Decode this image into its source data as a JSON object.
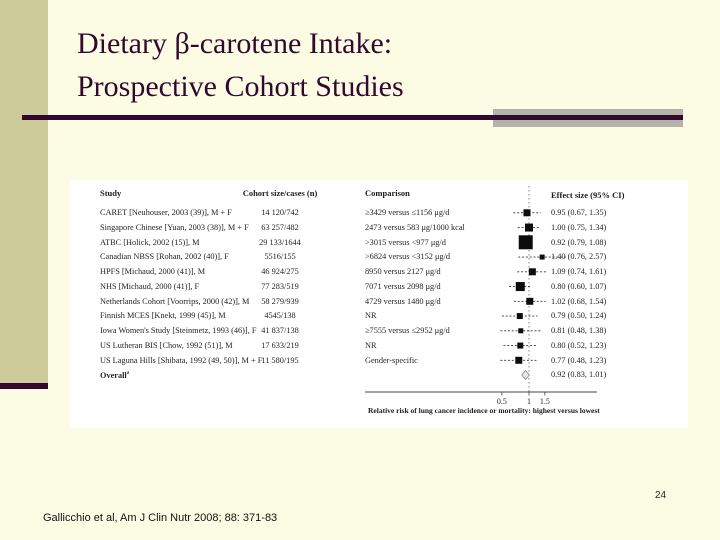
{
  "slide": {
    "title_lines": [
      "Dietary β-carotene Intake:",
      "Prospective Cohort Studies"
    ],
    "page_number": "24",
    "citation": "Gallicchio et al, Am J Clin Nutr 2008; 88: 371-83"
  },
  "colors": {
    "background": "#FCFCE4",
    "sidebar_olive": "#CBCC99",
    "accent_maroon": "#33082E",
    "accent_gray": "#B3B3AA",
    "panel_white": "#FFFFFF",
    "marker_black": "#0D0D0D"
  },
  "chart_data": {
    "type": "forest",
    "title": "",
    "columns": {
      "study": "Study",
      "cohort": "Cohort size/cases (n)",
      "comparison": "Comparison",
      "effect": "Effect size (95% CI)"
    },
    "xlabel": "Relative risk of lung cancer incidence or mortality: highest versus lowest",
    "x_ticks": [
      "0.5",
      "1",
      "1.5"
    ],
    "x_scale": "log",
    "ref_line": 1,
    "rows": [
      {
        "study": "CARET [Neuhouser, 2003 (39)], M + F",
        "cohort": "14 120/742",
        "comparison": "≥3429 versus ≤1156 μg/d",
        "effect": "0.95 (0.67, 1.35)",
        "rr": 0.95,
        "ci": [
          0.67,
          1.35
        ],
        "weight": 7
      },
      {
        "study": "Singapore Chinese [Yuan, 2003 (38)], M + F",
        "cohort": "63 257/482",
        "comparison": "2473 versus 583 μg/1000 kcal",
        "effect": "1.00 (0.75, 1.34)",
        "rr": 1.0,
        "ci": [
          0.75,
          1.34
        ],
        "weight": 8
      },
      {
        "study": "ATBC [Holick, 2002 (15)], M",
        "cohort": "29 133/1644",
        "comparison": ">3015 versus <977 μg/d",
        "effect": "0.92 (0.79, 1.08)",
        "rr": 0.92,
        "ci": [
          0.79,
          1.08
        ],
        "weight": 14
      },
      {
        "study": "Canadian NBSS [Rohan, 2002 (40)], F",
        "cohort": "5516/155",
        "comparison": ">6824 versus <3152 μg/d",
        "effect": "1.40 (0.76, 2.57)",
        "rr": 1.4,
        "ci": [
          0.76,
          2.57
        ],
        "weight": 5
      },
      {
        "study": "HPFS [Michaud, 2000 (41)], M",
        "cohort": "46 924/275",
        "comparison": "8950 versus 2127 μg/d",
        "effect": "1.09 (0.74, 1.61)",
        "rr": 1.09,
        "ci": [
          0.74,
          1.61
        ],
        "weight": 7
      },
      {
        "study": "NHS [Michaud, 2000 (41)], F",
        "cohort": "77 283/519",
        "comparison": "7071 versus 2098 μg/d",
        "effect": "0.80 (0.60, 1.07)",
        "rr": 0.8,
        "ci": [
          0.6,
          1.07
        ],
        "weight": 9
      },
      {
        "study": "Netherlands Cohort [Voorrips, 2000 (42)], M",
        "cohort": "58 279/939",
        "comparison": "4729 versus 1480 μg/d",
        "effect": "1.02 (0.68, 1.54)",
        "rr": 1.02,
        "ci": [
          0.68,
          1.54
        ],
        "weight": 7
      },
      {
        "study": "Finnish MCES [Knekt, 1999 (45)], M",
        "cohort": "4545/138",
        "comparison": "NR",
        "effect": "0.79 (0.50, 1.24)",
        "rr": 0.79,
        "ci": [
          0.5,
          1.24
        ],
        "weight": 6
      },
      {
        "study": "Iowa Women's Study [Steinmetz, 1993 (46)], F",
        "cohort": "41 837/138",
        "comparison": "≥7555 versus ≤2952 μg/d",
        "effect": "0.81 (0.48, 1.38)",
        "rr": 0.81,
        "ci": [
          0.48,
          1.38
        ],
        "weight": 5
      },
      {
        "study": "US Lutheran BIS [Chow, 1992 (51)], M",
        "cohort": "17 633/219",
        "comparison": "NR",
        "effect": "0.80 (0.52, 1.23)",
        "rr": 0.8,
        "ci": [
          0.52,
          1.23
        ],
        "weight": 6
      },
      {
        "study": "US Laguna Hills [Shibata, 1992 (49, 50)], M + F",
        "cohort": "11 580/195",
        "comparison": "Gender-specific",
        "effect": "0.77 (0.48, 1.23)",
        "rr": 0.77,
        "ci": [
          0.48,
          1.23
        ],
        "weight": 7
      }
    ],
    "overall": {
      "study": "Overall",
      "footnote_mark": "a",
      "effect": "0.92 (0.83, 1.01)",
      "rr": 0.92,
      "ci": [
        0.83,
        1.01
      ]
    }
  }
}
